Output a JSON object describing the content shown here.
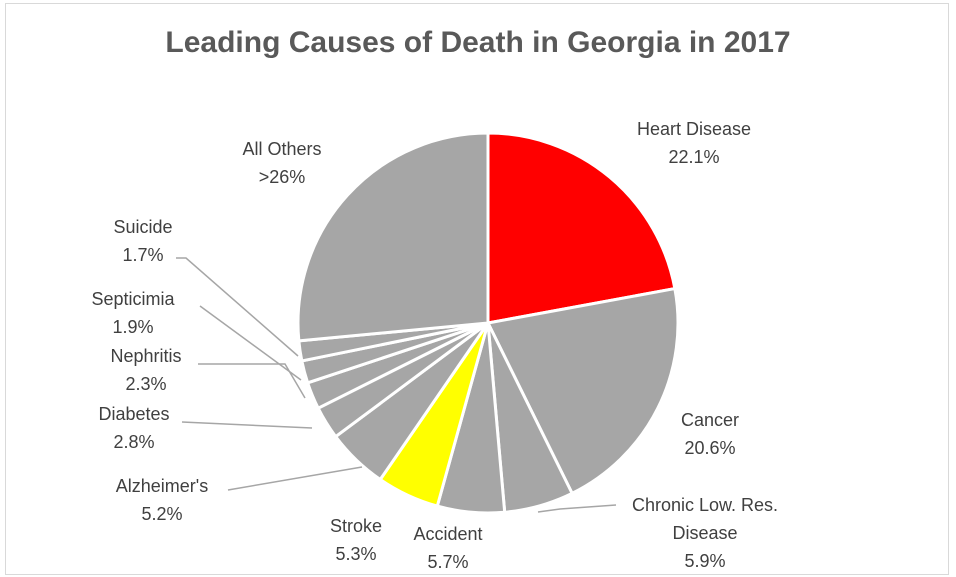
{
  "chart_data": {
    "type": "pie",
    "title": "Leading Causes of Death in Georgia in 2017",
    "slices": [
      {
        "label": "Heart Disease",
        "value": 22.1,
        "value_label": "22.1%",
        "color": "#ff0000"
      },
      {
        "label": "Cancer",
        "value": 20.6,
        "value_label": "20.6%",
        "color": "#a6a6a6"
      },
      {
        "label": "Chronic Low. Res. Disease",
        "value": 5.9,
        "value_label": "5.9%",
        "color": "#a6a6a6"
      },
      {
        "label": "Accident",
        "value": 5.7,
        "value_label": "5.7%",
        "color": "#a6a6a6"
      },
      {
        "label": "Stroke",
        "value": 5.3,
        "value_label": "5.3%",
        "color": "#ffff00"
      },
      {
        "label": "Alzheimer's",
        "value": 5.2,
        "value_label": "5.2%",
        "color": "#a6a6a6"
      },
      {
        "label": "Diabetes",
        "value": 2.8,
        "value_label": "2.8%",
        "color": "#a6a6a6"
      },
      {
        "label": "Nephritis",
        "value": 2.3,
        "value_label": "2.3%",
        "color": "#a6a6a6"
      },
      {
        "label": "Septicimia",
        "value": 1.9,
        "value_label": "1.9%",
        "color": "#a6a6a6"
      },
      {
        "label": "Suicide",
        "value": 1.7,
        "value_label": "1.7%",
        "color": "#a6a6a6"
      },
      {
        "label": "All Others",
        "value": 26.5,
        "value_label": ">26%",
        "color": "#a6a6a6"
      }
    ],
    "legend": "none"
  }
}
